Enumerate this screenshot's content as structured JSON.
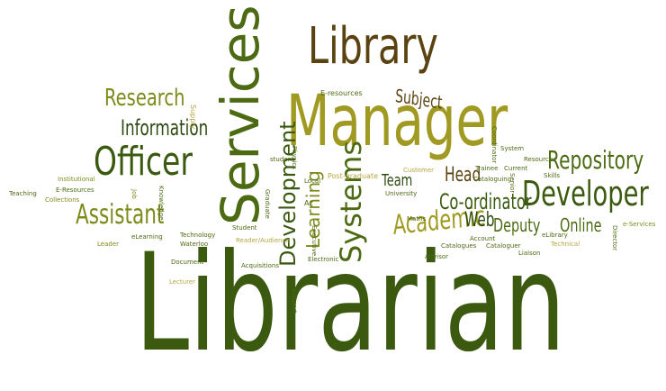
{
  "colors": {
    "dark_green": "#2d4a12",
    "mid_green": "#4c6a12",
    "olive": "#7e8a1a",
    "gold": "#a19a22",
    "brown": "#5a4310",
    "light_olive": "#b5a642"
  },
  "words": {
    "librarian": "Librarian",
    "manager": "Manager",
    "library": "Library",
    "services": "Services",
    "officer": "Officer",
    "developer": "Developer",
    "research": "Research",
    "information": "Information",
    "assistant": "Assistant",
    "repository": "Repository",
    "systems": "Systems",
    "academic": "Academic",
    "development": "Development",
    "learning": "Learning",
    "co_ordinator": "Co-ordinator",
    "subject": "Subject",
    "head": "Head",
    "team": "Team",
    "web": "Web",
    "deputy": "Deputy",
    "online": "Online",
    "e_resources": "E-resources",
    "supply": "Supply",
    "institutional": "Institutional",
    "e_resources_2": "E-Resources",
    "collections": "Collections",
    "teaching": "Teaching",
    "job": "Job",
    "knowledge": "Knowledge",
    "elearning": "eLearning",
    "leader": "Leader",
    "technology": "Technology",
    "waterloo": "Waterloo",
    "student": "Student",
    "reader_audience": "Reader/Audience",
    "document": "Document",
    "lecturer": "Lecturer",
    "acquisitions": "Acquisitions",
    "support": "Support",
    "electronic": "Electronic",
    "executive": "Executive",
    "az": "Az",
    "local": "Local",
    "post_graduate": "Post-graduate",
    "customer": "Customer",
    "physics": "Physics",
    "student_lower": "student",
    "graduate": "Graduate",
    "university": "University",
    "maths": "Maths",
    "advisor": "Advisor",
    "catalogues": "Catalogues",
    "cataloguer": "Cataloguer",
    "account": "Account",
    "trainee": "Trainee",
    "cataloguing": "Cataloguing",
    "senior": "Senior",
    "coordinator": "Coordinator",
    "system": "System",
    "current": "Current",
    "resources": "Resources",
    "skills": "Skills",
    "elibrary": "eLibrary",
    "liaison": "Liaison",
    "technical": "Technical",
    "director": "Director",
    "e_services": "e-Services"
  }
}
